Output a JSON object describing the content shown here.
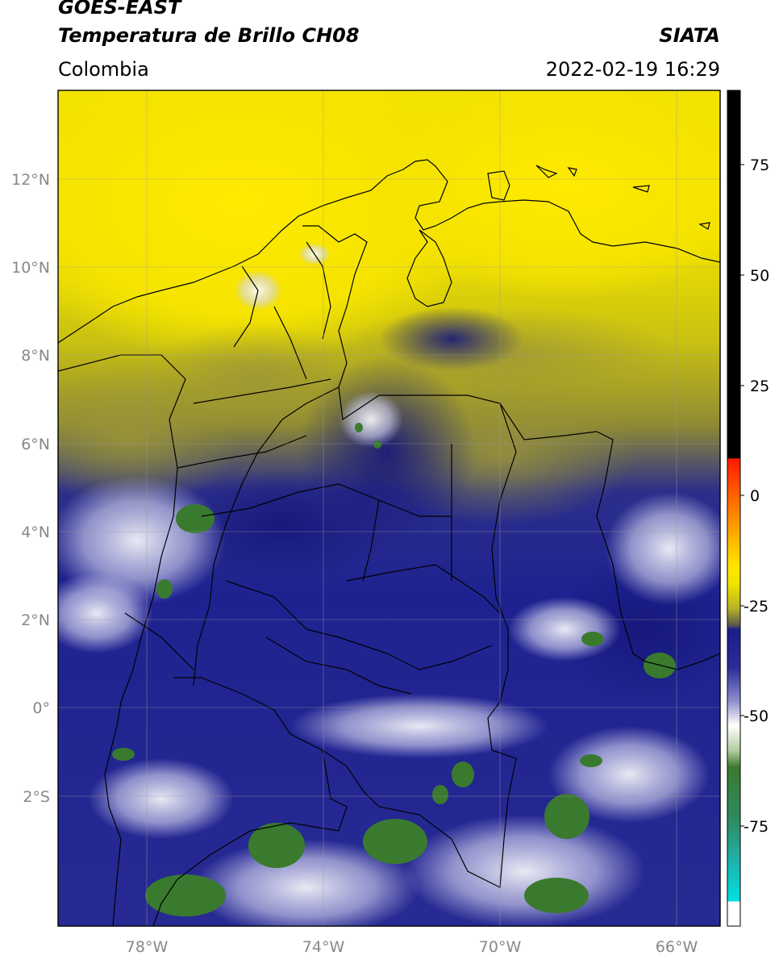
{
  "header": {
    "satellite": "GOES-EAST",
    "product": "Temperatura de Brillo CH08",
    "region": "Colombia",
    "agency": "SIATA",
    "datetime": "2022-02-19 16:29"
  },
  "map": {
    "lat_ticks": [
      "12°N",
      "10°N",
      "8°N",
      "6°N",
      "4°N",
      "2°N",
      "0°",
      "2°S"
    ],
    "lon_ticks": [
      "78°W",
      "74°W",
      "70°W",
      "66°W"
    ],
    "lat_range": [
      -5.0,
      14.0
    ],
    "lon_range": [
      -80.0,
      -65.0
    ]
  },
  "colorbar": {
    "ticks": [
      "75",
      "50",
      "25",
      "0",
      "-25",
      "-50",
      "-75"
    ],
    "range": [
      -100,
      90
    ],
    "colors": {
      "warm": "#000000",
      "red": "#ff2200",
      "orange": "#ff8800",
      "yellow": "#ffea00",
      "olive": "#8a8a30",
      "navy": "#1c1f8c",
      "lavender": "#c9c9ee",
      "white": "#ffffff",
      "green": "#3a7a2e",
      "cyan": "#00d8d8"
    }
  }
}
